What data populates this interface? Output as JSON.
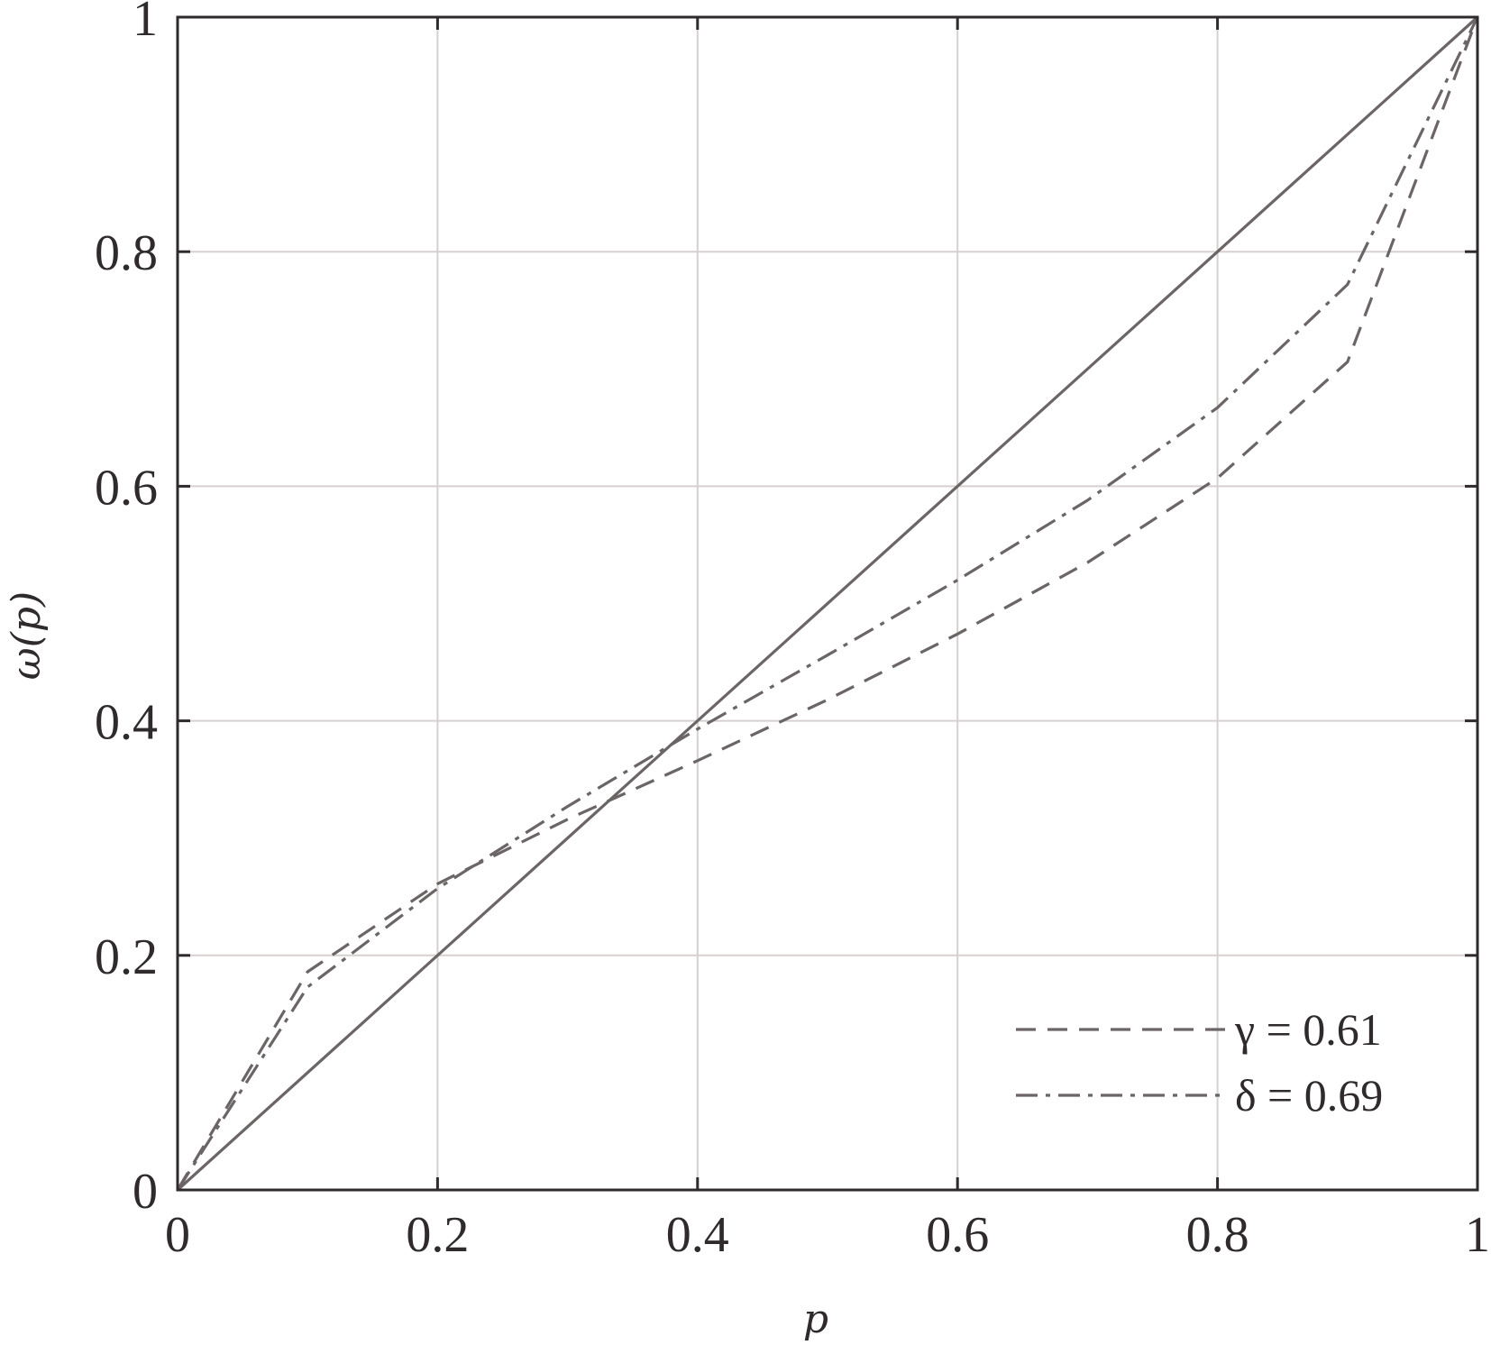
{
  "chart_data": {
    "type": "line",
    "title": "",
    "xlabel": "p",
    "ylabel": "ω(p)",
    "xlim": [
      0,
      1
    ],
    "ylim": [
      0,
      1
    ],
    "xticks": [
      0,
      0.2,
      0.4,
      0.6,
      0.8,
      1
    ],
    "yticks": [
      0,
      0.2,
      0.4,
      0.6,
      0.8,
      1
    ],
    "xtick_labels": [
      "0",
      "0.2",
      "0.4",
      "0.6",
      "0.8",
      "1"
    ],
    "ytick_labels": [
      "0",
      "0.2",
      "0.4",
      "0.6",
      "0.8",
      "1"
    ],
    "grid": true,
    "legend_position": "bottom-right",
    "series": [
      {
        "id": "identity",
        "style": "solid",
        "x": [
          0,
          1
        ],
        "y": [
          0,
          1
        ]
      },
      {
        "id": "gamma",
        "name": "γ = 0.61",
        "style": "dashed",
        "x": [
          0,
          0.1,
          0.2,
          0.3,
          0.4,
          0.5,
          0.6,
          0.7,
          0.8,
          0.9,
          1.0
        ],
        "y": [
          0,
          0.186,
          0.261,
          0.316,
          0.366,
          0.418,
          0.474,
          0.535,
          0.607,
          0.706,
          1.0
        ]
      },
      {
        "id": "delta",
        "name": "δ = 0.69",
        "style": "dash-dot",
        "x": [
          0,
          0.1,
          0.2,
          0.3,
          0.4,
          0.5,
          0.6,
          0.7,
          0.8,
          0.9,
          1.0
        ],
        "y": [
          0,
          0.173,
          0.257,
          0.327,
          0.393,
          0.456,
          0.52,
          0.588,
          0.667,
          0.772,
          1.0
        ]
      }
    ],
    "colors": {
      "line": "#6b6566",
      "axis": "#2f2a2b",
      "grid": "#d6d0d0"
    }
  }
}
